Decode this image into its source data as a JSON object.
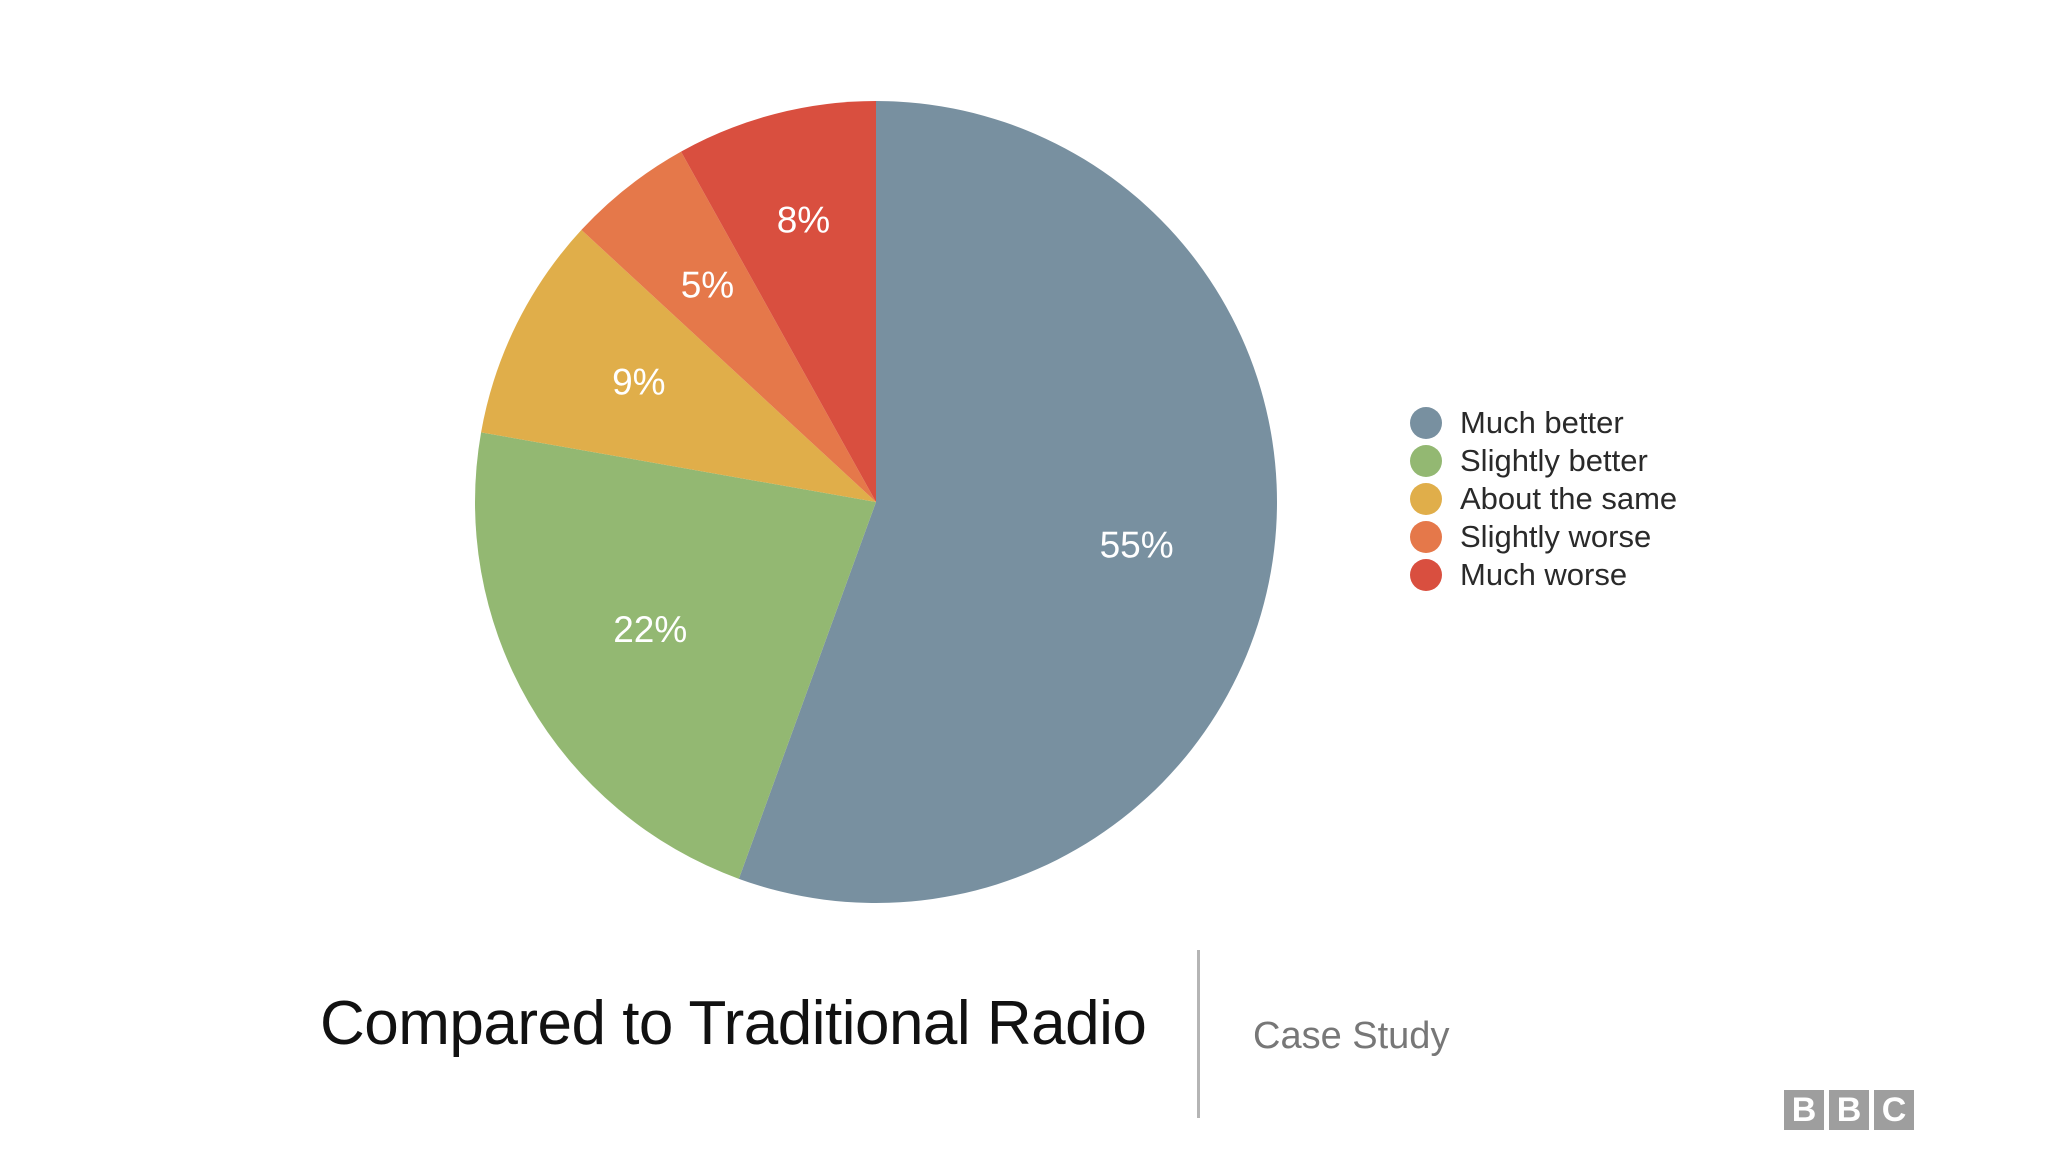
{
  "chart_data": {
    "type": "pie",
    "title": "",
    "categories": [
      "Much better",
      "Slightly better",
      "About the same",
      "Slightly worse",
      "Much worse"
    ],
    "values": [
      55,
      22,
      9,
      5,
      8
    ],
    "labels": [
      "55%",
      "22%",
      "9%",
      "5%",
      "8%"
    ],
    "colors": [
      "#7890a0",
      "#93b872",
      "#e0ae4a",
      "#e5784a",
      "#d94f3f"
    ],
    "legend": "right",
    "start": "top",
    "direction": "clockwise"
  },
  "slide": {
    "title": "Compared to Traditional Radio",
    "subtitle": "Case Study",
    "logo": [
      "B",
      "B",
      "C"
    ]
  }
}
